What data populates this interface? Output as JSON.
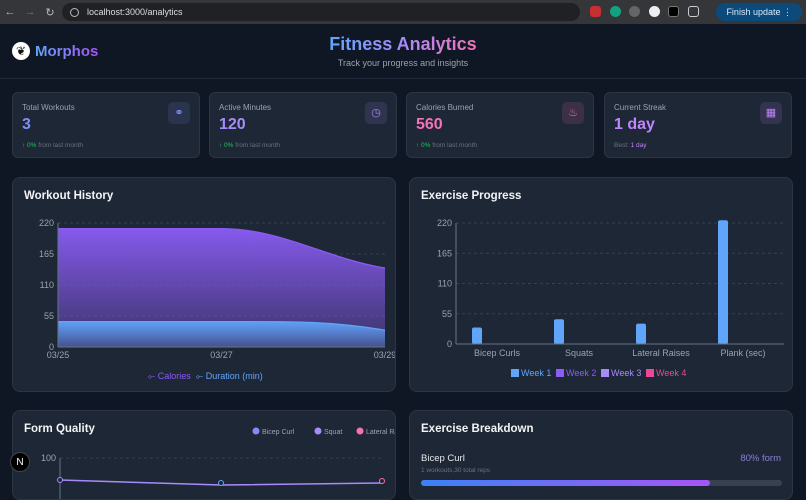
{
  "browser": {
    "url": "localhost:3000/analytics",
    "finish_update": "Finish update"
  },
  "header": {
    "logo": "Morphos",
    "title": "Fitness Analytics",
    "subtitle": "Track your progress and insights"
  },
  "stats": [
    {
      "label": "Total Workouts",
      "value": "3",
      "change": "↑ 0%",
      "change_suffix": " from last month",
      "color": "#818cf8",
      "icon": "dumbbell-icon"
    },
    {
      "label": "Active Minutes",
      "value": "120",
      "change": "↑ 0%",
      "change_suffix": " from last month",
      "color": "#a78bfa",
      "icon": "clock-icon"
    },
    {
      "label": "Calories Burned",
      "value": "560",
      "change": "↑ 0%",
      "change_suffix": " from last month",
      "color": "#f472b6",
      "icon": "flame-icon"
    },
    {
      "label": "Current Streak",
      "value": "1 day",
      "best_label": "Best: ",
      "best_value": "1 day",
      "color": "#c084fc",
      "icon": "calendar-icon"
    }
  ],
  "chart_data": [
    {
      "title": "Workout History",
      "type": "area",
      "x": [
        "03/25",
        "03/27",
        "03/29"
      ],
      "ylim": [
        0,
        220
      ],
      "yticks": [
        0,
        55,
        110,
        165,
        220
      ],
      "series": [
        {
          "name": "Calories",
          "values": [
            210,
            210,
            140
          ],
          "color": "#8b5cf6"
        },
        {
          "name": "Duration (min)",
          "values": [
            45,
            45,
            30
          ],
          "color": "#60a5fa"
        }
      ]
    },
    {
      "title": "Exercise Progress",
      "type": "bar",
      "categories": [
        "Bicep Curls",
        "Squats",
        "Lateral Raises",
        "Plank (sec)"
      ],
      "ylim": [
        0,
        220
      ],
      "yticks": [
        0,
        55,
        110,
        165,
        220
      ],
      "series": [
        {
          "name": "Week 1",
          "values": [
            30,
            45,
            37,
            225
          ],
          "color": "#60a5fa"
        },
        {
          "name": "Week 2",
          "values": [
            0,
            0,
            0,
            0
          ],
          "color": "#8b5cf6"
        },
        {
          "name": "Week 3",
          "values": [
            0,
            0,
            0,
            0
          ],
          "color": "#a78bfa"
        },
        {
          "name": "Week 4",
          "values": [
            0,
            0,
            0,
            0
          ],
          "color": "#ec4899"
        }
      ]
    },
    {
      "title": "Form Quality",
      "type": "line",
      "yticks": [
        100
      ],
      "legend": [
        {
          "name": "Bicep Curl",
          "color": "#818cf8"
        },
        {
          "name": "Squat",
          "color": "#a78bfa"
        },
        {
          "name": "Lateral Raise",
          "color": "#f472b6"
        }
      ]
    }
  ],
  "breakdown": {
    "title": "Exercise Breakdown",
    "items": [
      {
        "name": "Bicep Curl",
        "form": "80% form",
        "detail": "1 workouts,30 total reps",
        "progress": 80
      }
    ]
  }
}
